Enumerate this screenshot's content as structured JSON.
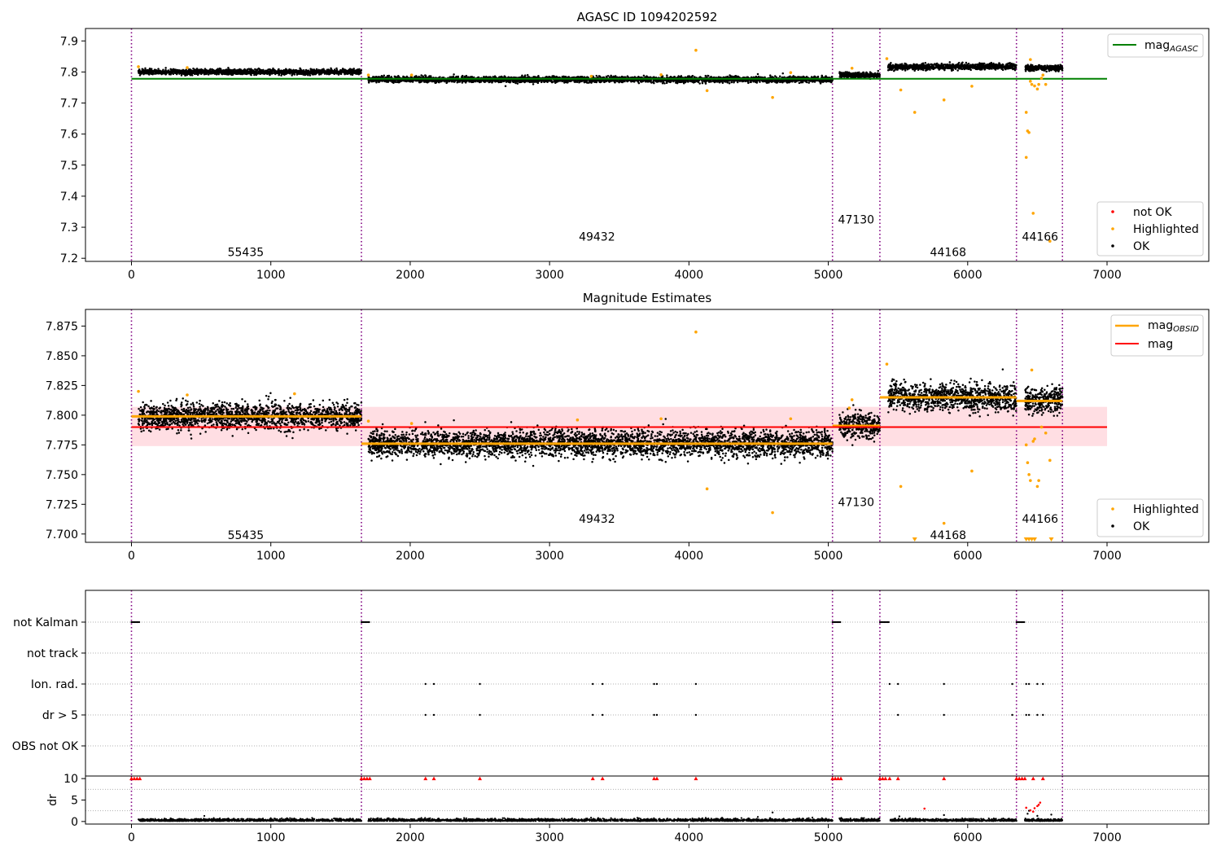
{
  "chart_data": [
    {
      "type": "scatter",
      "title": "AGASC ID 1094202592",
      "xlim": [
        -330,
        7730
      ],
      "ylim": [
        7.19,
        7.94
      ],
      "xticks": [
        0,
        1000,
        2000,
        3000,
        4000,
        5000,
        6000,
        7000
      ],
      "yticks": [
        7.2,
        7.3,
        7.4,
        7.5,
        7.6,
        7.7,
        7.8,
        7.9
      ],
      "obs_boundaries": [
        0,
        1650,
        5030,
        5370,
        6350,
        6680
      ],
      "obs_labels": [
        {
          "text": "55435",
          "x": 820,
          "y": 7.22
        },
        {
          "text": "49432",
          "x": 3340,
          "y": 7.27
        },
        {
          "text": "47130",
          "x": 5200,
          "y": 7.325
        },
        {
          "text": "44168",
          "x": 5860,
          "y": 7.22
        },
        {
          "text": "44166",
          "x": 6520,
          "y": 7.27
        }
      ],
      "lines": [
        {
          "name": "mag",
          "sub": "AGASC",
          "color": "#008000",
          "x": [
            0,
            7000
          ],
          "y": [
            7.778,
            7.778
          ]
        }
      ],
      "segments": [
        {
          "x0": 50,
          "x1": 1650,
          "mean": 7.8,
          "sd": 0.004
        },
        {
          "x0": 1700,
          "x1": 5030,
          "mean": 7.776,
          "sd": 0.0045
        },
        {
          "x0": 5080,
          "x1": 5370,
          "mean": 7.79,
          "sd": 0.004
        },
        {
          "x0": 5430,
          "x1": 6350,
          "mean": 7.817,
          "sd": 0.0045
        },
        {
          "x0": 6410,
          "x1": 6680,
          "mean": 7.813,
          "sd": 0.0045
        }
      ],
      "highlighted": [
        [
          50,
          7.817
        ],
        [
          400,
          7.814
        ],
        [
          1700,
          7.79
        ],
        [
          2010,
          7.79
        ],
        [
          3300,
          7.786
        ],
        [
          3800,
          7.791
        ],
        [
          4050,
          7.87
        ],
        [
          4130,
          7.74
        ],
        [
          4600,
          7.718
        ],
        [
          4730,
          7.798
        ],
        [
          5170,
          7.812
        ],
        [
          5420,
          7.843
        ],
        [
          5520,
          7.742
        ],
        [
          5620,
          7.67
        ],
        [
          5830,
          7.71
        ],
        [
          6030,
          7.754
        ],
        [
          6420,
          7.67
        ],
        [
          6430,
          7.61
        ],
        [
          6440,
          7.605
        ],
        [
          6450,
          7.77
        ],
        [
          6460,
          7.76
        ],
        [
          6470,
          7.345
        ],
        [
          6480,
          7.755
        ],
        [
          6500,
          7.745
        ],
        [
          6510,
          7.76
        ],
        [
          6530,
          7.78
        ],
        [
          6540,
          7.79
        ],
        [
          6560,
          7.76
        ],
        [
          6590,
          7.255
        ],
        [
          6420,
          7.525
        ],
        [
          6450,
          7.84
        ]
      ],
      "legend": {
        "position": "top-right",
        "entries": [
          {
            "label": "mag",
            "sub": "AGASC"
          }
        ]
      },
      "legend2": {
        "position": "bottom-right",
        "entries": [
          {
            "label": "not OK",
            "color": "#ff0000"
          },
          {
            "label": "Highlighted",
            "color": "#ffa500"
          },
          {
            "label": "OK",
            "color": "#000000"
          }
        ]
      }
    },
    {
      "type": "scatter",
      "title": "Magnitude Estimates",
      "xlim": [
        -330,
        7730
      ],
      "ylim": [
        7.693,
        7.889
      ],
      "xticks": [
        0,
        1000,
        2000,
        3000,
        4000,
        5000,
        6000,
        7000
      ],
      "yticks": [
        7.7,
        7.725,
        7.75,
        7.775,
        7.8,
        7.825,
        7.85,
        7.875
      ],
      "obs_boundaries": [
        0,
        1650,
        5030,
        5370,
        6350,
        6680
      ],
      "obs_labels": [
        {
          "text": "55435",
          "x": 820,
          "y": 7.699
        },
        {
          "text": "49432",
          "x": 3340,
          "y": 7.713
        },
        {
          "text": "47130",
          "x": 5200,
          "y": 7.727
        },
        {
          "text": "44168",
          "x": 5860,
          "y": 7.699
        },
        {
          "text": "44166",
          "x": 6520,
          "y": 7.713
        }
      ],
      "mag": {
        "value": 7.79,
        "band": [
          7.774,
          7.807
        ],
        "x": [
          0,
          7000
        ],
        "color": "#ff0000"
      },
      "mag_obsid": [
        {
          "x0": 0,
          "x1": 1650,
          "y": 7.799
        },
        {
          "x0": 1650,
          "x1": 5030,
          "y": 7.776
        },
        {
          "x0": 5030,
          "x1": 5370,
          "y": 7.791
        },
        {
          "x0": 5370,
          "x1": 6350,
          "y": 7.815
        },
        {
          "x0": 6350,
          "x1": 6680,
          "y": 7.812
        }
      ],
      "highlighted": [
        [
          50,
          7.82
        ],
        [
          400,
          7.817
        ],
        [
          1170,
          7.818
        ],
        [
          1700,
          7.795
        ],
        [
          2010,
          7.793
        ],
        [
          3200,
          7.796
        ],
        [
          3800,
          7.797
        ],
        [
          4050,
          7.87
        ],
        [
          4130,
          7.738
        ],
        [
          4600,
          7.718
        ],
        [
          4730,
          7.797
        ],
        [
          5170,
          7.813
        ],
        [
          5150,
          7.806
        ],
        [
          5420,
          7.843
        ],
        [
          5520,
          7.74
        ],
        [
          5830,
          7.709
        ],
        [
          6030,
          7.753
        ],
        [
          6420,
          7.775
        ],
        [
          6430,
          7.76
        ],
        [
          6440,
          7.75
        ],
        [
          6450,
          7.745
        ],
        [
          6460,
          7.838
        ],
        [
          6470,
          7.778
        ],
        [
          6480,
          7.78
        ],
        [
          6500,
          7.74
        ],
        [
          6510,
          7.745
        ],
        [
          6530,
          7.79
        ],
        [
          6560,
          7.785
        ],
        [
          6590,
          7.762
        ]
      ],
      "clipped_markers": [
        5620,
        6420,
        6440,
        6460,
        6480,
        6600
      ],
      "legend": {
        "position": "top-right",
        "entries": [
          {
            "label": "mag",
            "sub": "OBSID",
            "color": "#ffa500"
          },
          {
            "label": "mag",
            "color": "#ff0000"
          }
        ]
      },
      "legend2": {
        "position": "bottom-right",
        "entries": [
          {
            "label": "Highlighted",
            "color": "#ffa500"
          },
          {
            "label": "OK",
            "color": "#000000"
          }
        ]
      }
    },
    {
      "type": "scatter",
      "xlim": [
        -330,
        7730
      ],
      "xticks": [
        0,
        1000,
        2000,
        3000,
        4000,
        5000,
        6000,
        7000
      ],
      "flags": [
        "not Kalman",
        "not track",
        "Ion. rad.",
        "dr > 5",
        "OBS not OK"
      ],
      "obs_boundaries": [
        0,
        1650,
        5030,
        5370,
        6350,
        6680
      ],
      "not_kalman_ranges": [
        [
          0,
          60
        ],
        [
          1650,
          1710
        ],
        [
          5030,
          5090
        ],
        [
          5370,
          5440
        ],
        [
          6350,
          6410
        ]
      ],
      "ion_rad_x": [
        2110,
        2170,
        2500,
        3310,
        3380,
        3750,
        3770,
        4050,
        5440,
        5500,
        5830,
        6320,
        6420,
        6440,
        6500,
        6540
      ],
      "dr5_x": [
        2110,
        2170,
        2500,
        3310,
        3380,
        3750,
        3770,
        4050,
        5500,
        5830,
        6320,
        6420,
        6440,
        6500,
        6540
      ]
    },
    {
      "type": "scatter",
      "ylabel": "dr",
      "xlim": [
        -330,
        7730
      ],
      "ylim": [
        -0.6,
        10.6
      ],
      "xticks": [
        0,
        1000,
        2000,
        3000,
        4000,
        5000,
        6000,
        7000
      ],
      "yticks": [
        0,
        5,
        10
      ],
      "obs_boundaries": [
        0,
        1650,
        5030,
        5370,
        6350,
        6680
      ],
      "clip_red_x": [
        0,
        20,
        40,
        60,
        1650,
        1670,
        1690,
        1710,
        2110,
        2170,
        2500,
        3310,
        3380,
        3750,
        3770,
        4050,
        5030,
        5050,
        5070,
        5090,
        5370,
        5390,
        5410,
        5440,
        5500,
        5830,
        6350,
        6370,
        6390,
        6410,
        6470,
        6540
      ],
      "red_points": [
        [
          5690,
          3.0
        ],
        [
          6420,
          3.2
        ],
        [
          6450,
          2.6
        ],
        [
          6480,
          3.1
        ],
        [
          6500,
          3.6
        ],
        [
          6510,
          3.9
        ],
        [
          6520,
          4.4
        ],
        [
          6470,
          2.3
        ]
      ],
      "black_outliers": [
        [
          4600,
          2.1
        ],
        [
          5510,
          1.2
        ],
        [
          5830,
          1.5
        ],
        [
          6430,
          1.8
        ],
        [
          6440,
          2.5
        ],
        [
          6500,
          1.3
        ],
        [
          6600,
          1.6
        ]
      ]
    }
  ]
}
